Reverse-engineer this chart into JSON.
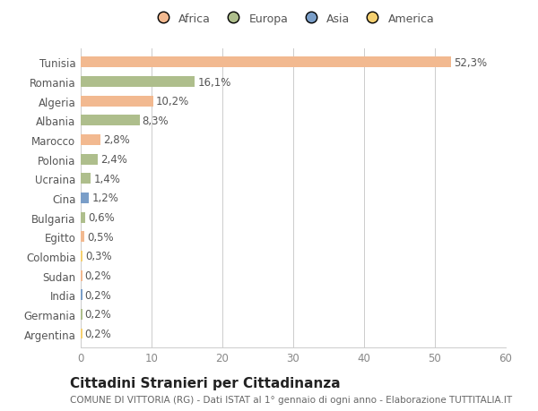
{
  "countries": [
    "Tunisia",
    "Romania",
    "Algeria",
    "Albania",
    "Marocco",
    "Polonia",
    "Ucraina",
    "Cina",
    "Bulgaria",
    "Egitto",
    "Colombia",
    "Sudan",
    "India",
    "Germania",
    "Argentina"
  ],
  "values": [
    52.3,
    16.1,
    10.2,
    8.3,
    2.8,
    2.4,
    1.4,
    1.2,
    0.6,
    0.5,
    0.3,
    0.2,
    0.2,
    0.2,
    0.2
  ],
  "labels": [
    "52,3%",
    "16,1%",
    "10,2%",
    "8,3%",
    "2,8%",
    "2,4%",
    "1,4%",
    "1,2%",
    "0,6%",
    "0,5%",
    "0,3%",
    "0,2%",
    "0,2%",
    "0,2%",
    "0,2%"
  ],
  "colors": [
    "#F2B990",
    "#AEBE8C",
    "#F2B990",
    "#AEBE8C",
    "#F2B990",
    "#AEBE8C",
    "#AEBE8C",
    "#7A9EC8",
    "#AEBE8C",
    "#F2B990",
    "#F5D070",
    "#F2B990",
    "#7A9EC8",
    "#AEBE8C",
    "#F5D070"
  ],
  "legend_labels": [
    "Africa",
    "Europa",
    "Asia",
    "America"
  ],
  "legend_colors": [
    "#F2B990",
    "#AEBE8C",
    "#7A9EC8",
    "#F5D070"
  ],
  "xlim": [
    0,
    60
  ],
  "xticks": [
    0,
    10,
    20,
    30,
    40,
    50,
    60
  ],
  "title": "Cittadini Stranieri per Cittadinanza",
  "subtitle": "COMUNE DI VITTORIA (RG) - Dati ISTAT al 1° gennaio di ogni anno - Elaborazione TUTTITALIA.IT",
  "bg_color": "#ffffff",
  "grid_color": "#cccccc",
  "bar_height": 0.55,
  "label_fontsize": 8.5,
  "ytick_fontsize": 8.5,
  "xtick_fontsize": 8.5,
  "title_fontsize": 11,
  "subtitle_fontsize": 7.5,
  "legend_fontsize": 9
}
